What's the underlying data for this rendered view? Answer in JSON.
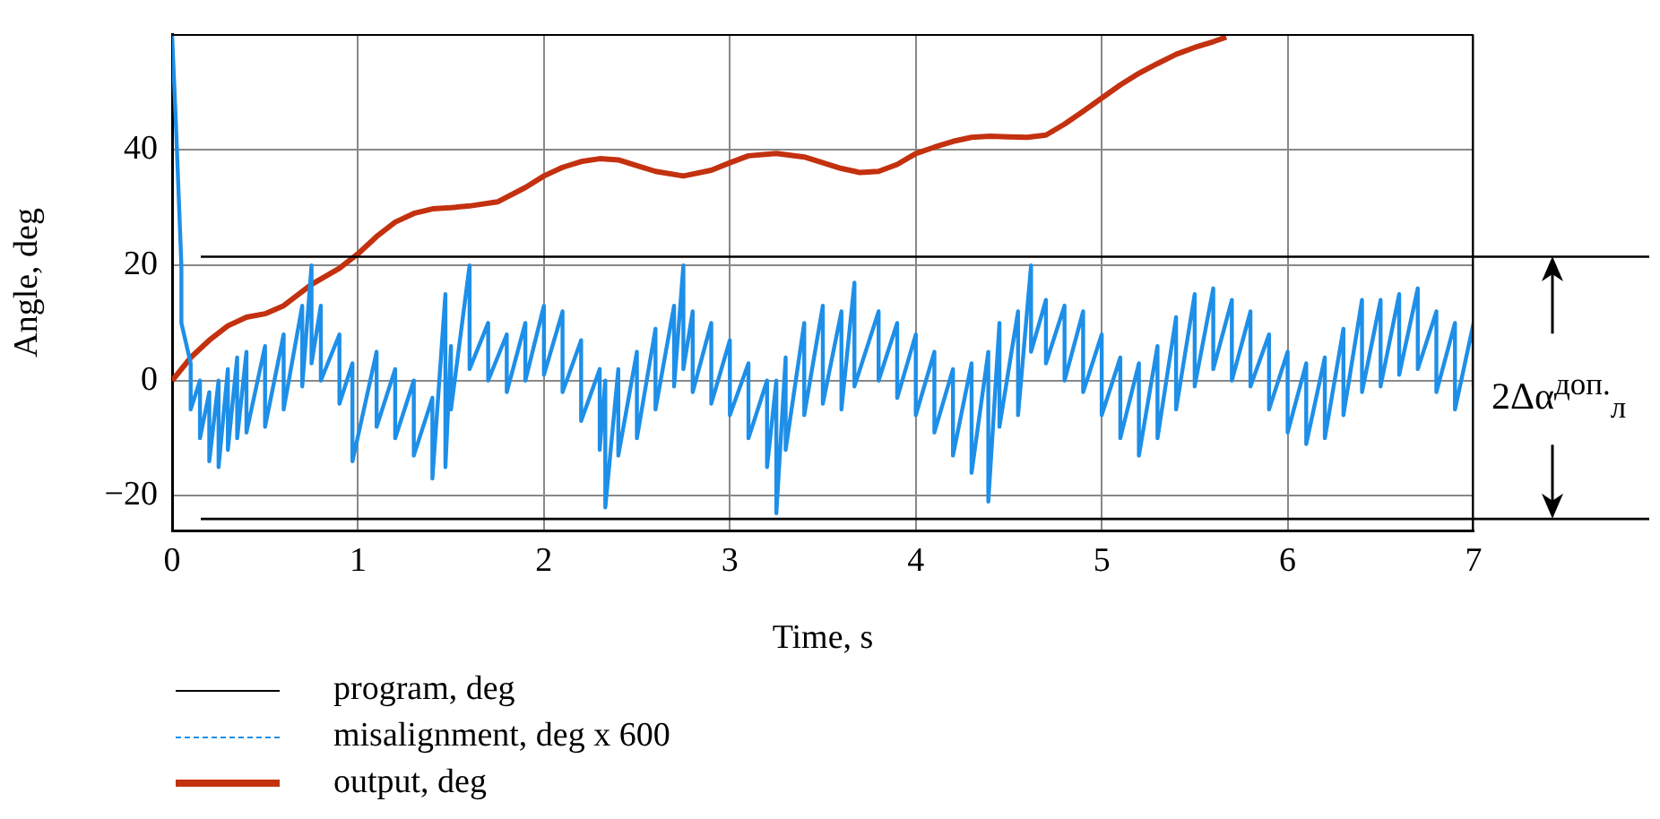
{
  "chart_data": {
    "type": "line",
    "xlabel": "Time, s",
    "ylabel": "Angle, deg",
    "xlim": [
      0,
      7
    ],
    "xticks": [
      0,
      1,
      2,
      3,
      4,
      5,
      6,
      7
    ],
    "ylim": [
      -26,
      60
    ],
    "yticks": [
      -20,
      0,
      20,
      40
    ],
    "grid": true,
    "legend": "bottom",
    "marker": "none",
    "series": [
      {
        "name": "program, deg",
        "color": "#000000"
      },
      {
        "name": "misalignment, deg x 600",
        "color": "#1e8fe8",
        "x": [
          0,
          0.02,
          0.05,
          0.05,
          0.1,
          0.1,
          0.15,
          0.15,
          0.2,
          0.2,
          0.25,
          0.25,
          0.3,
          0.3,
          0.35,
          0.35,
          0.4,
          0.4,
          0.5,
          0.5,
          0.6,
          0.6,
          0.7,
          0.7,
          0.75,
          0.75,
          0.8,
          0.8,
          0.9,
          0.9,
          0.97,
          0.97,
          1.1,
          1.1,
          1.2,
          1.2,
          1.3,
          1.3,
          1.4,
          1.4,
          1.47,
          1.47,
          1.5,
          1.5,
          1.6,
          1.6,
          1.7,
          1.7,
          1.8,
          1.8,
          1.9,
          1.9,
          2.0,
          2.0,
          2.1,
          2.1,
          2.2,
          2.2,
          2.3,
          2.3,
          2.33,
          2.33,
          2.4,
          2.4,
          2.5,
          2.5,
          2.6,
          2.6,
          2.7,
          2.7,
          2.75,
          2.75,
          2.8,
          2.8,
          2.9,
          2.9,
          3.0,
          3.0,
          3.1,
          3.1,
          3.2,
          3.2,
          3.25,
          3.25,
          3.3,
          3.3,
          3.4,
          3.4,
          3.5,
          3.5,
          3.6,
          3.6,
          3.67,
          3.67,
          3.8,
          3.8,
          3.9,
          3.9,
          4.0,
          4.0,
          4.1,
          4.1,
          4.2,
          4.2,
          4.3,
          4.3,
          4.39,
          4.39,
          4.45,
          4.45,
          4.55,
          4.55,
          4.62,
          4.62,
          4.7,
          4.7,
          4.8,
          4.8,
          4.9,
          4.9,
          5.0,
          5.0,
          5.1,
          5.1,
          5.2,
          5.2,
          5.3,
          5.3,
          5.4,
          5.4,
          5.5,
          5.5,
          5.6,
          5.6,
          5.7,
          5.7,
          5.8,
          5.8,
          5.9,
          5.9,
          6.0,
          6.0,
          6.1,
          6.1,
          6.2,
          6.2,
          6.3,
          6.3,
          6.4,
          6.4,
          6.5,
          6.5,
          6.6,
          6.6,
          6.7,
          6.7,
          6.8,
          6.8,
          6.9,
          6.9,
          7.0,
          7.0
        ],
        "values": [
          60,
          45,
          20,
          10,
          3,
          -5,
          0,
          -10,
          -2,
          -14,
          0,
          -15,
          2,
          -12,
          4,
          -10,
          5,
          -9,
          6,
          -8,
          8,
          -5,
          13,
          -1,
          20,
          3,
          13,
          0,
          8,
          -4,
          3,
          -14,
          5,
          -8,
          2,
          -10,
          0,
          -13,
          -3,
          -17,
          15,
          -15,
          6,
          -5,
          20,
          2,
          10,
          0,
          8,
          -2,
          10,
          0,
          13,
          1,
          12,
          -2,
          7,
          -7,
          2,
          -12,
          0,
          -22,
          2,
          -13,
          5,
          -10,
          9,
          -5,
          13,
          -1,
          20,
          2,
          12,
          -2,
          10,
          -4,
          7,
          -6,
          3,
          -10,
          0,
          -15,
          0,
          -23,
          4,
          -12,
          10,
          -6,
          13,
          -4,
          12,
          -5,
          17,
          -1,
          12,
          0,
          10,
          -3,
          8,
          -6,
          5,
          -9,
          2,
          -13,
          3,
          -16,
          5,
          -21,
          10,
          -8,
          12,
          -6,
          20,
          5,
          14,
          3,
          13,
          0,
          12,
          -2,
          8,
          -6,
          4,
          -10,
          3,
          -13,
          6,
          -10,
          11,
          -5,
          15,
          -1,
          16,
          2,
          14,
          0,
          12,
          -1,
          8,
          -5,
          5,
          -9,
          3,
          -11,
          4,
          -10,
          9,
          -6,
          14,
          -2,
          14,
          -1,
          15,
          1,
          16,
          2,
          12,
          -2,
          10,
          -5,
          10,
          -1
        ]
      },
      {
        "name": "output, deg",
        "color": "#c3310f",
        "x": [
          0,
          0.1,
          0.2,
          0.3,
          0.4,
          0.5,
          0.6,
          0.75,
          0.9,
          1.0,
          1.1,
          1.2,
          1.3,
          1.4,
          1.5,
          1.6,
          1.75,
          1.9,
          2.0,
          2.1,
          2.2,
          2.3,
          2.4,
          2.5,
          2.6,
          2.75,
          2.9,
          3.0,
          3.1,
          3.25,
          3.4,
          3.5,
          3.6,
          3.7,
          3.8,
          3.9,
          4.0,
          4.1,
          4.2,
          4.3,
          4.4,
          4.5,
          4.6,
          4.7,
          4.8,
          4.9,
          5.0,
          5.1,
          5.2,
          5.3,
          5.4,
          5.5,
          5.6,
          5.67
        ],
        "values": [
          0,
          4,
          7,
          9.5,
          11,
          11.6,
          13,
          16.7,
          19.5,
          22,
          25,
          27.5,
          29,
          29.8,
          30,
          30.3,
          31,
          33.5,
          35.5,
          37,
          38,
          38.5,
          38.3,
          37.3,
          36.3,
          35.5,
          36.5,
          37.8,
          39,
          39.4,
          38.8,
          37.8,
          36.8,
          36.1,
          36.3,
          37.5,
          39.4,
          40.5,
          41.5,
          42.2,
          42.4,
          42.3,
          42.2,
          42.6,
          44.5,
          46.7,
          49,
          51.3,
          53.3,
          55,
          56.6,
          57.8,
          58.8,
          59.6
        ]
      }
    ],
    "ref_lines": [
      {
        "axis": "y",
        "value": 21.5,
        "color": "#000000"
      },
      {
        "axis": "y",
        "value": -24,
        "color": "#000000"
      }
    ],
    "annotations": [
      "2Δα$^{доп.}$$_{л}$"
    ]
  }
}
